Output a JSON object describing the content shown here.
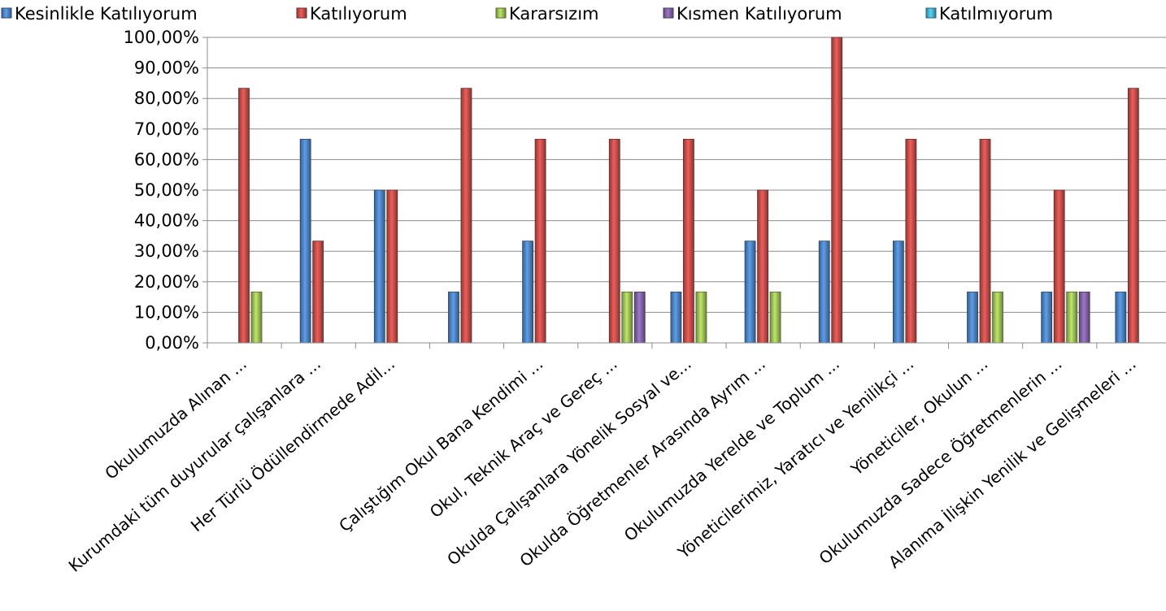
{
  "chart_data": {
    "type": "bar",
    "categories": [
      "Okulumuzda Alınan ...",
      "Kurumdaki tüm duyurular çalışanlara ...",
      "Her Türlü Ödüllendirmede Adil...",
      "",
      "Çalıştığım Okul Bana Kendimi ...",
      "Okul, Teknik Araç ve Gereç ...",
      "Okulda Çalışanlara Yönelik Sosyal ve...",
      "Okulda Öğretmenler Arasında Ayrım ...",
      "Okulumuzda Yerelde ve Toplum ...",
      "Yöneticilerimiz, Yaratıcı ve Yenilikçi ...",
      "Yöneticiler, Okulun ...",
      "Okulumuzda Sadece Öğretmenlerin ...",
      "Alanıma İlişkin Yenilik ve Gelişmeleri ..."
    ],
    "series": [
      {
        "name": "Kesinlikle Katılıyorum",
        "color": "#4A7EBB",
        "values": [
          0,
          66.67,
          50,
          16.67,
          33.33,
          0,
          16.67,
          33.33,
          33.33,
          33.33,
          16.67,
          16.67,
          16.67
        ]
      },
      {
        "name": "Katılıyorum",
        "color": "#BE4B48",
        "values": [
          83.33,
          33.33,
          50,
          83.33,
          66.67,
          66.67,
          66.67,
          50,
          100,
          66.67,
          66.67,
          50,
          83.33
        ]
      },
      {
        "name": "Kararsızım",
        "color": "#98B954",
        "values": [
          16.67,
          0,
          0,
          0,
          0,
          16.67,
          16.67,
          16.67,
          0,
          0,
          16.67,
          16.67,
          0
        ]
      },
      {
        "name": "Kısmen Katılıyorum",
        "color": "#7D60A0",
        "values": [
          0,
          0,
          0,
          0,
          0,
          16.67,
          0,
          0,
          0,
          0,
          0,
          16.67,
          0
        ]
      },
      {
        "name": "Katılmıyorum",
        "color": "#46AAC5",
        "values": [
          0,
          0,
          0,
          0,
          0,
          0,
          0,
          0,
          0,
          0,
          0,
          0,
          0
        ]
      }
    ],
    "yticks": [
      "0,00%",
      "10,00%",
      "20,00%",
      "30,00%",
      "40,00%",
      "50,00%",
      "60,00%",
      "70,00%",
      "80,00%",
      "90,00%",
      "100,00%"
    ],
    "ylim": [
      0,
      100
    ],
    "grid": true,
    "legend": "top"
  }
}
